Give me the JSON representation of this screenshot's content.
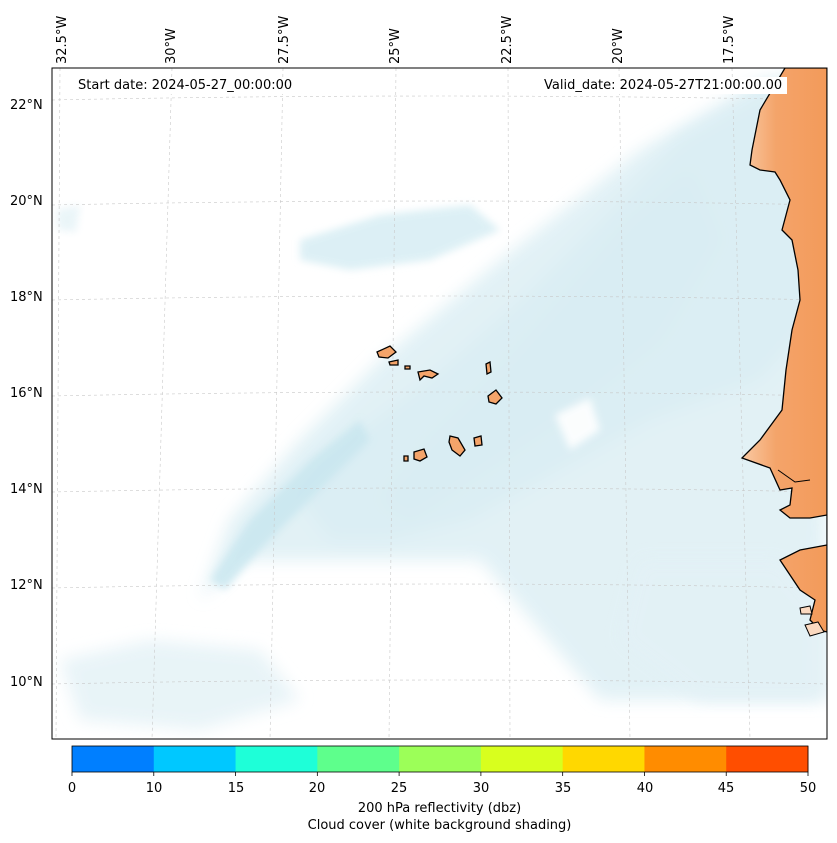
{
  "map": {
    "start_date": "Start date: 2024-05-27_00:00:00",
    "valid_date": "Valid_date: 2024-05-27T21:00:00.00",
    "lon_labels": [
      "32.5°W",
      "30°W",
      "27.5°W",
      "25°W",
      "22.5°W",
      "20°W",
      "17.5°W"
    ],
    "lat_labels": [
      "22°N",
      "20°N",
      "18°N",
      "16°N",
      "14°N",
      "12°N",
      "10°N"
    ],
    "land_color": "#f4a46a",
    "cloud_color": "#a8d8e8",
    "places": [
      "Cape Verde Islands",
      "West African coast (Mauritania / Senegal / Gambia / Guinea-Bissau)"
    ]
  },
  "colorbar": {
    "ticks": [
      "0",
      "10",
      "15",
      "20",
      "25",
      "30",
      "35",
      "40",
      "45",
      "50"
    ],
    "colors": [
      "#007fff",
      "#00c8ff",
      "#1effd8",
      "#5eff8c",
      "#9cff58",
      "#d8ff1e",
      "#ffd800",
      "#ff8c00",
      "#ff4e00"
    ],
    "label_line1": "200 hPa reflectivity (dbz)",
    "label_line2": "Cloud cover (white background shading)"
  }
}
